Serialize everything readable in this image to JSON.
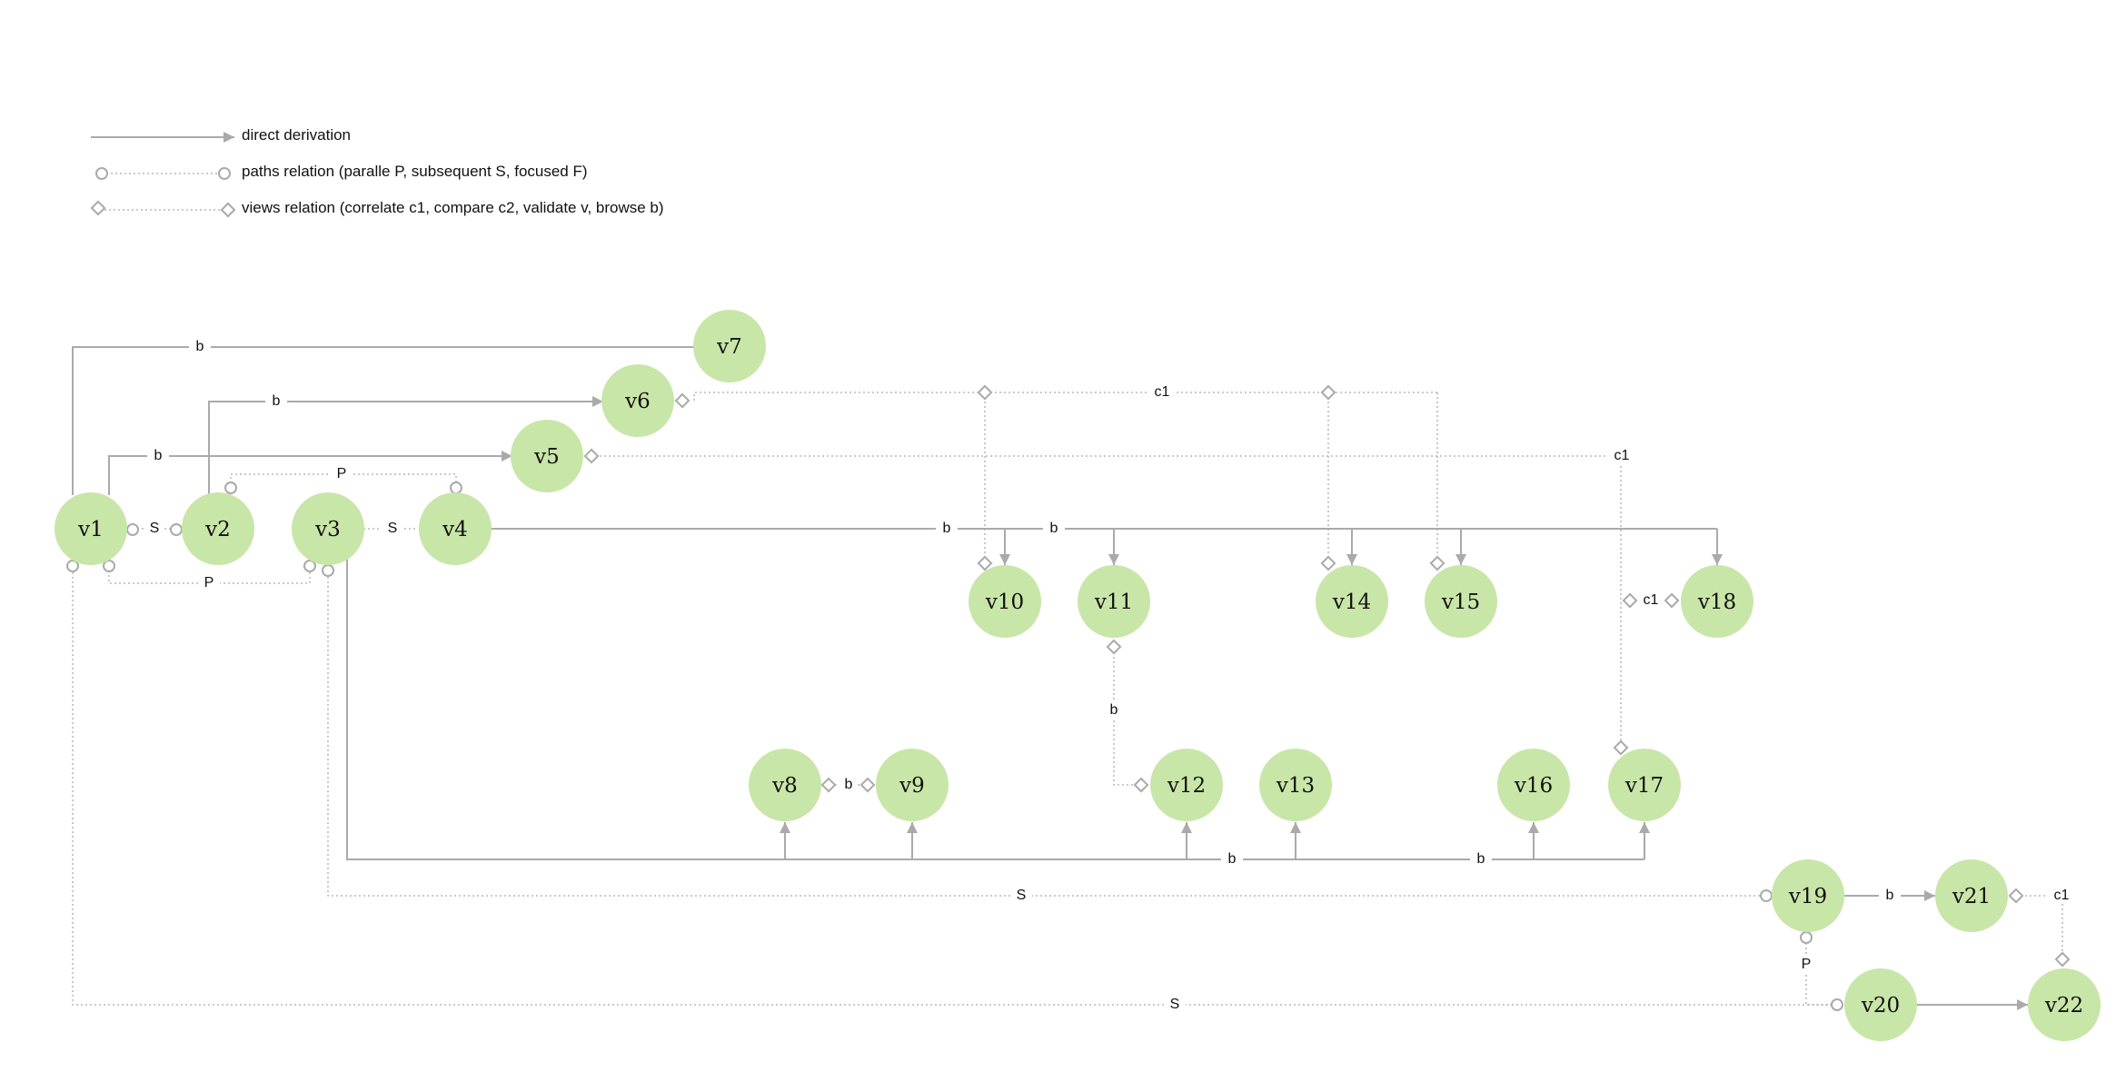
{
  "legend": {
    "direct_derivation": "direct derivation",
    "paths_relation": "paths relation (paralle P, subsequent S, focused F)",
    "views_relation": "views relation  (correlate c1, compare c2, validate v, browse b)"
  },
  "colors": {
    "node_fill": "#c8e6a8",
    "edge": "#aaaaaa",
    "text": "#111111"
  },
  "nodes": {
    "v1": "v1",
    "v2": "v2",
    "v3": "v3",
    "v4": "v4",
    "v5": "v5",
    "v6": "v6",
    "v7": "v7",
    "v8": "v8",
    "v9": "v9",
    "v10": "v10",
    "v11": "v11",
    "v12": "v12",
    "v13": "v13",
    "v14": "v14",
    "v15": "v15",
    "v16": "v16",
    "v17": "v17",
    "v18": "v18",
    "v19": "v19",
    "v20": "v20",
    "v21": "v21",
    "v22": "v22"
  },
  "edge_labels": {
    "v1_v7": "b",
    "v2_v6": "b",
    "v1_v5": "b",
    "v2_v4": "P",
    "v1_v2": "S",
    "v3_v4": "S",
    "v1_v3": "P",
    "v4_v10": "b",
    "v4_v11": "b",
    "v6_views": "c1",
    "v5_v17": "c1",
    "v17_v18": "c1",
    "v8_v9": "b",
    "v11_v12": "b",
    "v3_bus_a": "b",
    "v3_bus_b": "b",
    "v3_v19": "S",
    "v19_v21": "b",
    "v21_v22": "c1",
    "v19_v20": "P",
    "v1_v20": "S"
  }
}
